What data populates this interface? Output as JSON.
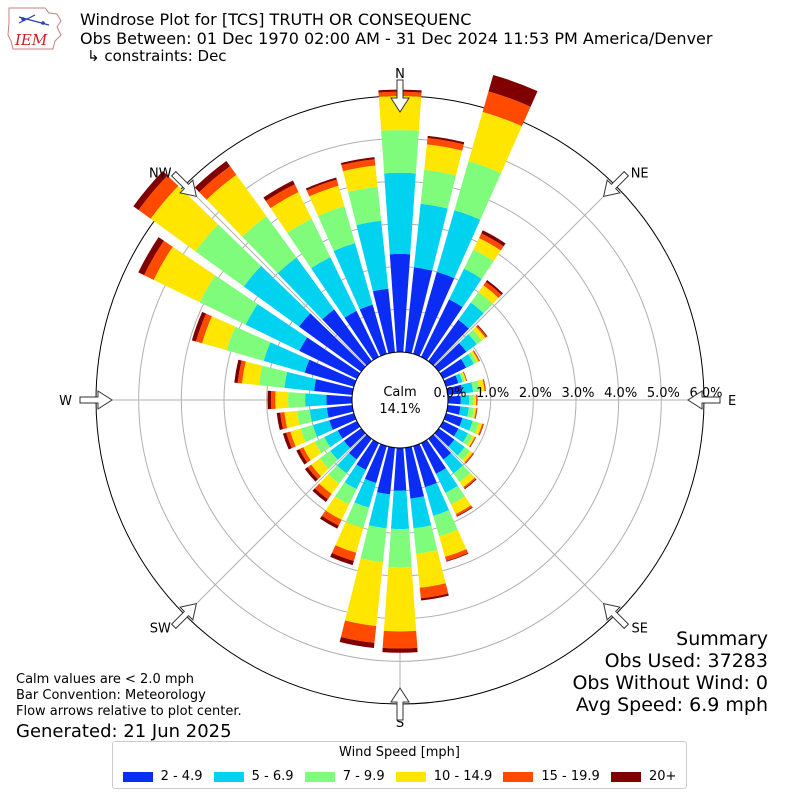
{
  "header": {
    "title_line1": "Windrose Plot for [TCS] TRUTH OR CONSEQUENC",
    "title_line2": "Obs Between: 01 Dec 1970 02:00 AM - 31 Dec 2024 11:53 PM America/Denver",
    "title_line3": "↳ constraints: Dec",
    "logo_text": "IEM"
  },
  "summary": {
    "heading": "Summary",
    "obs_used": "Obs Used: 37283",
    "obs_without_wind": "Obs Without Wind: 0",
    "avg_speed": "Avg Speed: 6.9 mph"
  },
  "notes": {
    "line1": "Calm values are < 2.0 mph",
    "line2": "Bar Convention: Meteorology",
    "line3": "Flow arrows relative to plot center.",
    "generated": "Generated: 21 Jun 2025"
  },
  "colors": {
    "bins": [
      "#0a2cf5",
      "#00d2f0",
      "#80fc7c",
      "#ffe600",
      "#ff4a00",
      "#800000"
    ]
  },
  "chart_data": {
    "type": "windrose",
    "calm_label": "Calm",
    "calm_value": "14.1%",
    "calm_percent": 14.1,
    "radial_max": 6.0,
    "radial_ticks": [
      0,
      1,
      2,
      3,
      4,
      5,
      6
    ],
    "radial_tick_labels": [
      "0.0%",
      "1.0%",
      "2.0%",
      "3.0%",
      "4.0%",
      "5.0%",
      "6.0%"
    ],
    "compass_labels": [
      "N",
      "NE",
      "E",
      "SE",
      "S",
      "SW",
      "W",
      "NW"
    ],
    "direction_step_deg": 10,
    "legend_title": "Wind Speed [mph]",
    "speed_bins": [
      "2 - 4.9",
      "5 - 6.9",
      "7 - 9.9",
      "10 - 14.9",
      "15 - 19.9",
      "20+"
    ],
    "directions_deg": [
      0,
      10,
      20,
      30,
      40,
      50,
      60,
      70,
      80,
      90,
      100,
      110,
      120,
      130,
      140,
      150,
      160,
      170,
      180,
      190,
      200,
      210,
      220,
      230,
      240,
      250,
      260,
      270,
      280,
      290,
      300,
      310,
      320,
      330,
      340,
      350
    ],
    "values": [
      [
        2.3,
        1.9,
        1.0,
        0.8,
        0.1,
        0.05
      ],
      [
        2.0,
        1.5,
        0.8,
        0.6,
        0.15,
        0.05
      ],
      [
        2.0,
        1.5,
        1.2,
        1.2,
        0.5,
        0.4
      ],
      [
        1.5,
        0.8,
        0.5,
        0.3,
        0.12,
        0.08
      ],
      [
        1.2,
        0.5,
        0.3,
        0.2,
        0.1,
        0.05
      ],
      [
        0.8,
        0.3,
        0.15,
        0.1,
        0.04,
        0.02
      ],
      [
        0.6,
        0.2,
        0.08,
        0.05,
        0.02,
        0.01
      ],
      [
        0.3,
        0.1,
        0.05,
        0.04,
        0.01,
        0.01
      ],
      [
        0.35,
        0.25,
        0.15,
        0.12,
        0.02,
        0.01
      ],
      [
        0.3,
        0.2,
        0.1,
        0.06,
        0.02,
        0.01
      ],
      [
        0.3,
        0.2,
        0.12,
        0.05,
        0.02,
        0.01
      ],
      [
        0.4,
        0.25,
        0.15,
        0.08,
        0.03,
        0.01
      ],
      [
        0.4,
        0.25,
        0.12,
        0.06,
        0.02,
        0.01
      ],
      [
        0.45,
        0.3,
        0.15,
        0.08,
        0.03,
        0.01
      ],
      [
        0.6,
        0.4,
        0.25,
        0.15,
        0.04,
        0.02
      ],
      [
        0.8,
        0.5,
        0.3,
        0.25,
        0.05,
        0.02
      ],
      [
        1.0,
        0.7,
        0.5,
        0.5,
        0.1,
        0.02
      ],
      [
        1.2,
        0.7,
        0.6,
        0.8,
        0.25,
        0.05
      ],
      [
        1.0,
        0.9,
        0.9,
        1.5,
        0.4,
        0.1
      ],
      [
        1.1,
        0.8,
        0.8,
        1.5,
        0.4,
        0.12
      ],
      [
        0.9,
        0.6,
        0.5,
        0.6,
        0.2,
        0.1
      ],
      [
        0.7,
        0.5,
        0.4,
        0.4,
        0.15,
        0.08
      ],
      [
        0.6,
        0.4,
        0.3,
        0.3,
        0.15,
        0.08
      ],
      [
        0.5,
        0.4,
        0.3,
        0.25,
        0.1,
        0.08
      ],
      [
        0.5,
        0.35,
        0.25,
        0.3,
        0.1,
        0.08
      ],
      [
        0.6,
        0.4,
        0.3,
        0.25,
        0.1,
        0.08
      ],
      [
        0.6,
        0.4,
        0.3,
        0.3,
        0.1,
        0.08
      ],
      [
        0.6,
        0.5,
        0.4,
        0.3,
        0.1,
        0.08
      ],
      [
        0.9,
        0.7,
        0.6,
        0.4,
        0.1,
        0.08
      ],
      [
        1.2,
        1.0,
        0.9,
        0.6,
        0.15,
        0.1
      ],
      [
        1.5,
        1.4,
        1.2,
        1.2,
        0.25,
        0.15
      ],
      [
        1.8,
        1.6,
        1.4,
        1.3,
        0.35,
        0.15
      ],
      [
        1.5,
        1.5,
        1.2,
        1.2,
        0.25,
        0.15
      ],
      [
        1.2,
        1.4,
        1.0,
        0.7,
        0.2,
        0.1
      ],
      [
        1.2,
        1.5,
        0.9,
        0.5,
        0.15,
        0.05
      ],
      [
        1.5,
        1.6,
        0.8,
        0.5,
        0.15,
        0.05
      ]
    ]
  }
}
